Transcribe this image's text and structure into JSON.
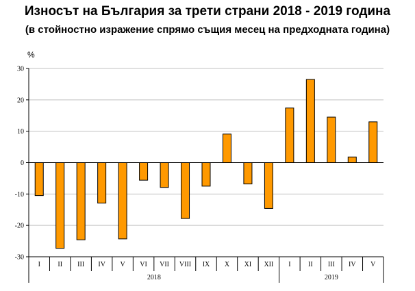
{
  "title": "Износът на България за трети страни 2018 - 2019 година",
  "subtitle": "(в стойностно изражение спрямо същия месец на предходната година)",
  "colors": {
    "bar": "#FF9900",
    "bar_outline": "#000000",
    "grid": "#C0C0C0"
  },
  "chart_data": {
    "type": "bar",
    "title": "Износът на България за трети страни 2018 - 2019 година",
    "subtitle": "(в стойностно изражение спрямо същия месец на предходната година)",
    "ylabel": "%",
    "ylim": [
      -30,
      30
    ],
    "yticks": [
      30,
      20,
      10,
      0,
      -10,
      -20,
      -30
    ],
    "grid": true,
    "categories": [
      "I",
      "II",
      "III",
      "IV",
      "V",
      "VI",
      "VII",
      "VIII",
      "IX",
      "X",
      "XI",
      "XII",
      "I",
      "II",
      "III",
      "IV",
      "V"
    ],
    "groups": [
      {
        "label": "2018",
        "count": 12
      },
      {
        "label": "2019",
        "count": 5
      }
    ],
    "values": [
      -10.5,
      -27.3,
      -24.6,
      -12.9,
      -24.3,
      -5.6,
      -7.9,
      -17.8,
      -7.5,
      9.1,
      -6.8,
      -14.6,
      17.4,
      26.5,
      14.5,
      1.8,
      13.0
    ]
  }
}
